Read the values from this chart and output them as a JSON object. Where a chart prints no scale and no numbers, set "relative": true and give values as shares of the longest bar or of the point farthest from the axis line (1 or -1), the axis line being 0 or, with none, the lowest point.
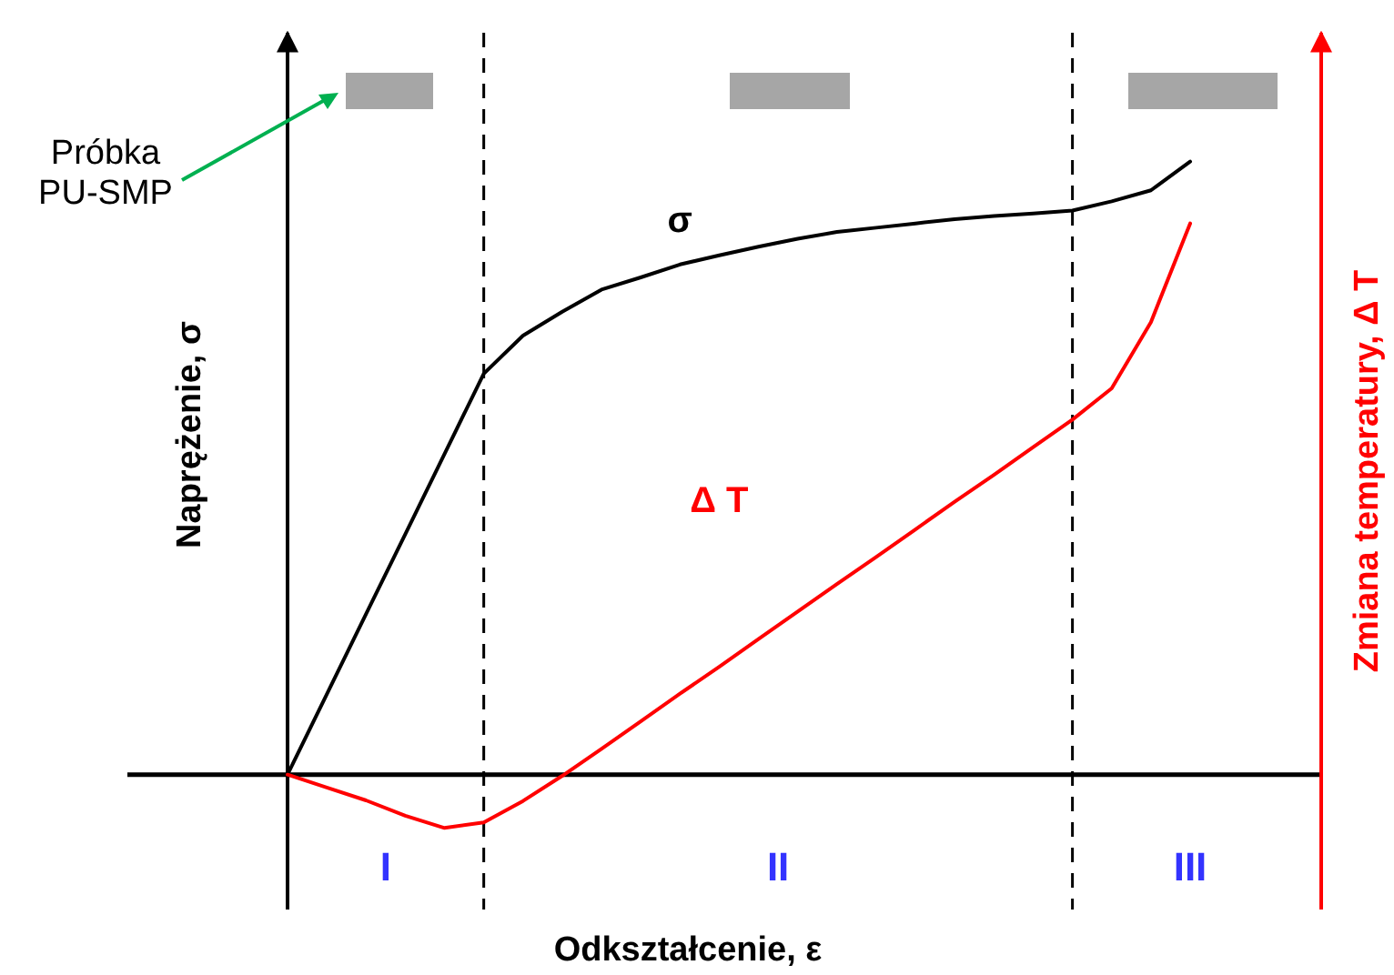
{
  "chart_data": {
    "type": "line",
    "relative": true,
    "xlabel": "Odkształcenie, ε",
    "ylabel": "Naprężenie, σ",
    "y2label": "Zmiana temperatury, Δ T",
    "marker": "none",
    "line_style": "solid",
    "categories": [
      null,
      null,
      null,
      null,
      null,
      null,
      null,
      null,
      null,
      null,
      null,
      null,
      null,
      null,
      null,
      null,
      null,
      null,
      null,
      null,
      null,
      null,
      null,
      null
    ],
    "series": [
      {
        "name": "σ",
        "color": "#000000",
        "values": [
          0,
          0.131,
          0.262,
          0.392,
          0.523,
          0.654,
          0.716,
          0.755,
          0.791,
          0.811,
          0.832,
          0.847,
          0.861,
          0.874,
          0.885,
          0.892,
          0.899,
          0.906,
          0.911,
          0.915,
          0.92,
          0.935,
          0.953,
          1
        ]
      },
      {
        "name": "Δ T",
        "color": "#ff0000",
        "values": [
          0,
          -0.021,
          -0.042,
          -0.067,
          -0.087,
          -0.078,
          -0.043,
          -0.002,
          0.042,
          0.087,
          0.132,
          0.176,
          0.221,
          0.266,
          0.311,
          0.355,
          0.4,
          0.445,
          0.489,
          0.534,
          0.579,
          0.63,
          0.738,
          0.899
        ]
      }
    ],
    "annotations": [
      "I",
      "II",
      "III",
      "Próbka\nPU-SMP"
    ]
  }
}
